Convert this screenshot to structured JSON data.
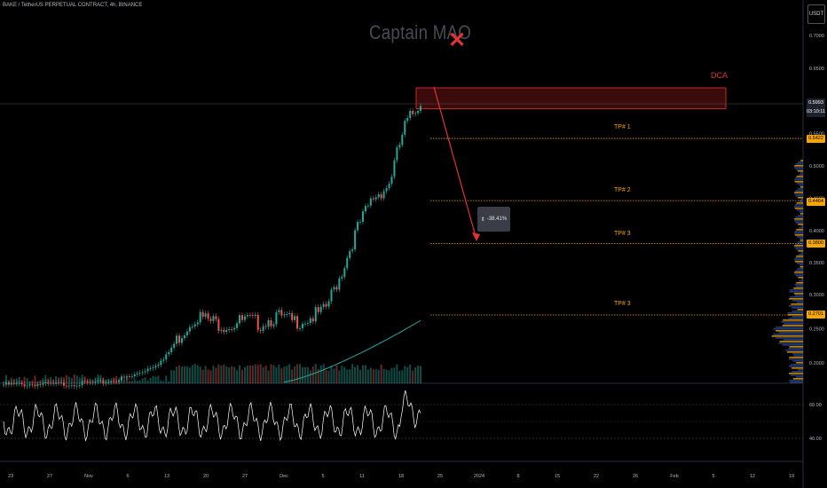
{
  "header": {
    "symbol_line": "BAKE / TetherUS PERPETUAL CONTRACT, 4h, BINANCE",
    "watermark": "Captain MAO",
    "currency": "USDT"
  },
  "chart_data": {
    "type": "line",
    "price_axis": {
      "ticks": [
        "0.7000",
        "0.6500",
        "0.5500",
        "0.5000",
        "0.4500",
        "0.4000",
        "0.3500",
        "0.3000",
        "0.2500",
        "0.2000"
      ],
      "tick_values": [
        0.7,
        0.65,
        0.55,
        0.5,
        0.45,
        0.4,
        0.35,
        0.3,
        0.25,
        0.2
      ]
    },
    "current_price": {
      "value": "0.5993",
      "countdown": "03:10:11"
    },
    "annotations": {
      "dca_label": "DCA",
      "dca_zone": [
        0.588,
        0.62
      ],
      "measure_label": "-38.41%",
      "tp_lines": [
        {
          "label": "TP# 1",
          "price": 0.5422,
          "chip": "0.5422"
        },
        {
          "label": "TP# 2",
          "price": 0.4464,
          "chip": "0.4464"
        },
        {
          "label": "TP# 3",
          "price": 0.38,
          "chip": "0.3800"
        },
        {
          "label": "TP# 3",
          "price": 0.2701,
          "chip": "0.2701"
        }
      ]
    },
    "rsi_axis": {
      "ticks": [
        "60.00",
        "40.00"
      ]
    },
    "time_axis": {
      "ticks": [
        "23",
        "27",
        "Nov",
        "6",
        "13",
        "20",
        "27",
        "Dec",
        "5",
        "11",
        "18",
        "25",
        "2024",
        "8",
        "15",
        "22",
        "26",
        "Feb",
        "5",
        "12",
        "19"
      ]
    },
    "series": [
      {
        "name": "",
        "values": [
          0.168,
          0.168,
          0.169,
          0.168,
          0.169,
          0.17,
          0.171,
          0.175,
          0.18,
          0.192,
          0.205,
          0.24,
          0.27,
          0.26,
          0.255,
          0.262,
          0.258,
          0.268,
          0.26,
          0.265,
          0.275,
          0.33,
          0.4,
          0.45,
          0.47,
          0.56,
          0.6
        ]
      }
    ],
    "colors": {
      "up": "#26a69a",
      "down": "#ef5350",
      "tp": "#f7a600",
      "dca": "#e03434",
      "ma": "#26a69a",
      "rsi": "#ffffff"
    }
  }
}
